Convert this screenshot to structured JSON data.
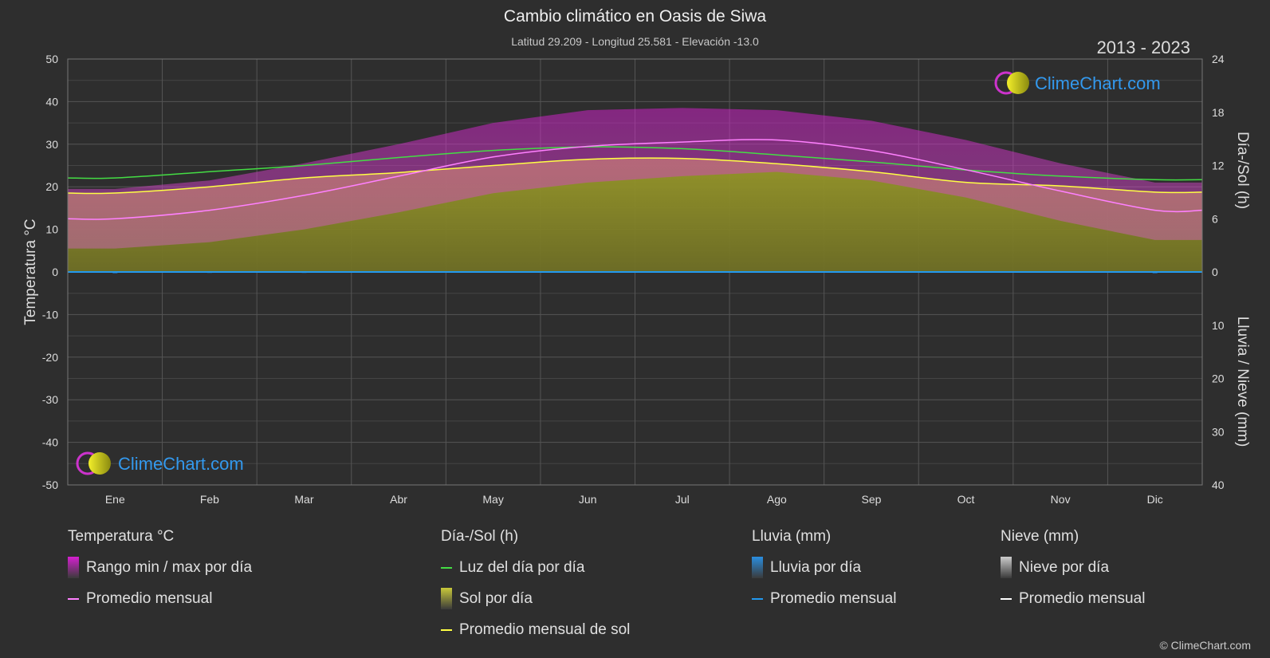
{
  "header": {
    "title": "Cambio climático en Oasis de Siwa",
    "subtitle": "Latitud 29.209 - Longitud 25.581 - Elevación -13.0",
    "years": "2013 - 2023"
  },
  "watermark": {
    "text": "ClimeChart.com"
  },
  "copyright": "© ClimeChart.com",
  "colors": {
    "background": "#2e2e2e",
    "temp_range": "#d61fd0",
    "temp_avg": "#ff80ff",
    "daylight": "#44dd44",
    "sunshine_fill": "#8e8e26",
    "sunshine_avg": "#ffff44",
    "rain": "#2299ee",
    "snow": "#ffffff"
  },
  "chart_data": {
    "type": "area",
    "months": [
      "Ene",
      "Feb",
      "Mar",
      "Abr",
      "May",
      "Jun",
      "Jul",
      "Ago",
      "Sep",
      "Oct",
      "Nov",
      "Dic"
    ],
    "left_axis": {
      "label": "Temperatura °C",
      "range": [
        -50,
        50
      ],
      "ticks": [
        "50",
        "40",
        "30",
        "20",
        "10",
        "0",
        "-10",
        "-20",
        "-30",
        "-40",
        "-50"
      ]
    },
    "right_axis_top": {
      "label": "Día-/Sol (h)",
      "range": [
        0,
        24
      ],
      "ticks": [
        "24",
        "18",
        "12",
        "6",
        "0"
      ]
    },
    "right_axis_bottom": {
      "label": "Lluvia / Nieve (mm)",
      "range": [
        0,
        40
      ],
      "ticks": [
        "10",
        "20",
        "30",
        "40"
      ]
    },
    "series": [
      {
        "name": "Luz del día por día",
        "unit": "h",
        "values": [
          10.6,
          11.3,
          12.0,
          12.9,
          13.7,
          14.1,
          13.9,
          13.2,
          12.4,
          11.5,
          10.8,
          10.4
        ]
      },
      {
        "name": "Promedio mensual de sol",
        "unit": "h",
        "values": [
          8.9,
          9.6,
          10.6,
          11.2,
          12.0,
          12.7,
          12.8,
          12.2,
          11.3,
          10.1,
          9.7,
          9.0
        ]
      },
      {
        "name": "Promedio mensual",
        "unit": "°C",
        "values": [
          12.5,
          14.5,
          18.0,
          22.5,
          27.0,
          29.5,
          30.5,
          31.0,
          28.5,
          24.0,
          19.0,
          14.5
        ]
      },
      {
        "name": "Rango min / max por día (max)",
        "unit": "°C",
        "values": [
          19.5,
          21.5,
          25.5,
          30.0,
          35.0,
          38.0,
          38.5,
          38.0,
          35.5,
          31.0,
          25.5,
          21.0
        ]
      },
      {
        "name": "Rango min / max por día (min)",
        "unit": "°C",
        "values": [
          5.5,
          7.0,
          10.0,
          14.0,
          18.5,
          21.0,
          22.5,
          23.5,
          21.5,
          17.5,
          12.0,
          7.5
        ]
      },
      {
        "name": "Lluvia por día",
        "unit": "mm",
        "values": [
          0.3,
          0.2,
          0.2,
          0.1,
          0.0,
          0.0,
          0.0,
          0.0,
          0.0,
          0.0,
          0.1,
          0.3
        ]
      }
    ],
    "grid": true
  },
  "legend": {
    "groups": [
      {
        "title": "Temperatura °C",
        "items": [
          {
            "label": "Rango min / max por día",
            "kind": "box",
            "color": "#d61fd0"
          },
          {
            "label": "Promedio mensual",
            "kind": "line",
            "color": "#ff80ff"
          }
        ]
      },
      {
        "title": "Día-/Sol (h)",
        "items": [
          {
            "label": "Luz del día por día",
            "kind": "line",
            "color": "#44dd44"
          },
          {
            "label": "Sol por día",
            "kind": "box",
            "color": "#c9c93a"
          },
          {
            "label": "Promedio mensual de sol",
            "kind": "line",
            "color": "#ffff44"
          }
        ]
      },
      {
        "title": "Lluvia (mm)",
        "items": [
          {
            "label": "Lluvia por día",
            "kind": "box",
            "color": "#2a8ee0"
          },
          {
            "label": "Promedio mensual",
            "kind": "line",
            "color": "#2299ee"
          }
        ]
      },
      {
        "title": "Nieve (mm)",
        "items": [
          {
            "label": "Nieve por día",
            "kind": "box",
            "color": "#cccccc"
          },
          {
            "label": "Promedio mensual",
            "kind": "line",
            "color": "#ffffff"
          }
        ]
      }
    ]
  }
}
